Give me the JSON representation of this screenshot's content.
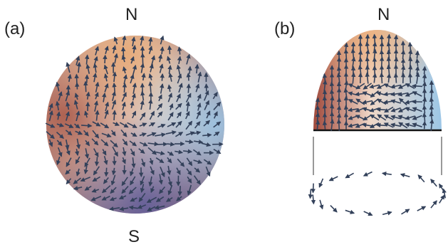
{
  "panels": [
    {
      "label": "(a)",
      "north": "N",
      "south": "S"
    },
    {
      "label": "(b)",
      "north": "N"
    }
  ]
}
